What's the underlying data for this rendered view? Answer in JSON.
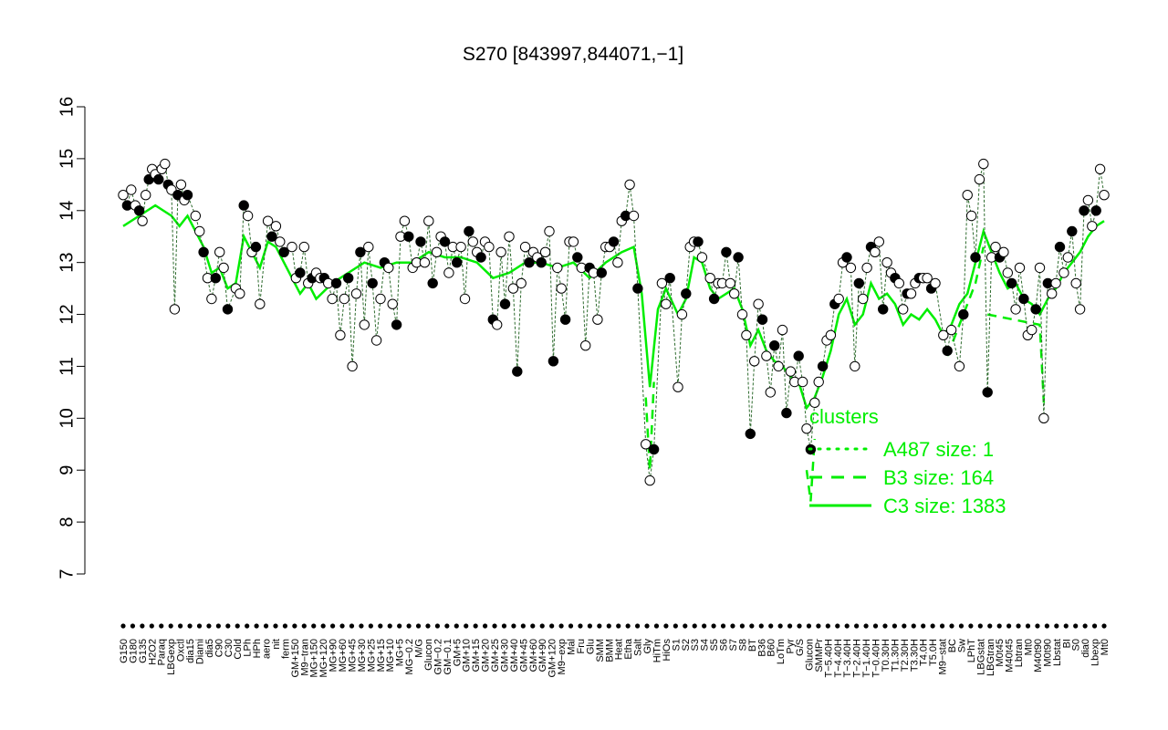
{
  "chart_data": {
    "type": "line",
    "title": "S270 [843997,844071,−1]",
    "xlabel": "",
    "ylabel": "",
    "ylim": [
      7,
      16
    ],
    "yticks": [
      7,
      8,
      9,
      10,
      11,
      12,
      13,
      14,
      15,
      16
    ],
    "colors": {
      "line": "#00ee00",
      "points_fill_dark": "#000000",
      "points_fill_light": "#ffffff"
    },
    "x_category_labels": [
      "G150",
      "G180",
      "G135",
      "H2O2",
      "Paraq",
      "LBGexp",
      "Oxctl",
      "dia15",
      "Diami",
      "dia5",
      "C90",
      "C30",
      "Cold",
      "LPh",
      "HPh",
      "aero",
      "nit",
      "ferm",
      "GM+150",
      "M9−tran",
      "MG+150",
      "MG+120",
      "MG+90",
      "MG+60",
      "MG+45",
      "MG+30",
      "MG+25",
      "MG+15",
      "MG+10",
      "MG+5",
      "MG−0.2",
      "M/G",
      "Glucon",
      "GM−0.2",
      "GM−0.1",
      "GM+5",
      "GM+10",
      "GM+15",
      "GM+20",
      "GM+25",
      "GM+30",
      "GM+40",
      "GM+45",
      "GM+60",
      "GM+90",
      "GM+120",
      "M9−exp",
      "Mal",
      "Fru",
      "Glu",
      "SMM",
      "BMM",
      "Heat",
      "Etha",
      "Salt",
      "Gly",
      "HiTm",
      "HiOs",
      "S1",
      "S2",
      "S3",
      "S4",
      "S5",
      "S6",
      "S7",
      "S8",
      "BT",
      "B36",
      "B60",
      "LoTm",
      "Pyr",
      "G/S",
      "Glucon",
      "SMMPr",
      "T−5.40H",
      "T−4.40H",
      "T−3.40H",
      "T−2.40H",
      "T−1.40H",
      "T−0.40H",
      "T0.30H",
      "T1.30H",
      "T2.30H",
      "T3.30H",
      "T4.0H",
      "T5.0H",
      "M9−stat",
      "BC",
      "Sw",
      "LPhT",
      "LBGstat",
      "LBGtran",
      "M0t45",
      "M40t45",
      "Lbtran",
      "Mt0",
      "M40t90",
      "M0t90",
      "Lbstat",
      "BI",
      "S0",
      "dia0",
      "Lbexp",
      "Mt0"
    ],
    "series": [
      {
        "name": "A487 size: 1"
      },
      {
        "name": "B3 size: 164"
      },
      {
        "name": "C3 size: 1383"
      }
    ],
    "legend": {
      "title": "clusters",
      "placement": "lower-right",
      "entries": [
        {
          "label": "A487 size: 1",
          "style": "dotted"
        },
        {
          "label": "B3 size: 164",
          "style": "dashed"
        },
        {
          "label": "C3 size: 1383",
          "style": "solid"
        }
      ]
    },
    "points": [
      [
        1,
        14.3
      ],
      [
        1.5,
        14.1
      ],
      [
        2,
        14.4
      ],
      [
        2.5,
        14.1
      ],
      [
        3,
        14.0
      ],
      [
        3.4,
        13.8
      ],
      [
        3.8,
        14.3
      ],
      [
        4.2,
        14.6
      ],
      [
        4.6,
        14.8
      ],
      [
        5,
        14.7
      ],
      [
        5.4,
        14.6
      ],
      [
        5.8,
        14.8
      ],
      [
        6.2,
        14.9
      ],
      [
        6.6,
        14.5
      ],
      [
        7,
        14.4
      ],
      [
        7.4,
        12.1
      ],
      [
        7.8,
        14.3
      ],
      [
        8.2,
        14.5
      ],
      [
        8.6,
        14.2
      ],
      [
        9,
        14.3
      ],
      [
        10,
        13.9
      ],
      [
        10.5,
        13.6
      ],
      [
        11,
        13.2
      ],
      [
        11.5,
        12.7
      ],
      [
        12,
        12.3
      ],
      [
        12.5,
        12.7
      ],
      [
        13,
        13.2
      ],
      [
        13.5,
        12.9
      ],
      [
        14,
        12.1
      ],
      [
        15,
        12.5
      ],
      [
        15.5,
        12.4
      ],
      [
        16,
        14.1
      ],
      [
        16.5,
        13.9
      ],
      [
        17,
        13.2
      ],
      [
        17.5,
        13.3
      ],
      [
        18,
        12.2
      ],
      [
        19,
        13.8
      ],
      [
        19.5,
        13.5
      ],
      [
        20,
        13.7
      ],
      [
        20.5,
        13.4
      ],
      [
        21,
        13.2
      ],
      [
        22,
        13.3
      ],
      [
        22.5,
        12.7
      ],
      [
        23,
        12.8
      ],
      [
        23.5,
        13.3
      ],
      [
        24,
        12.6
      ],
      [
        24.5,
        12.7
      ],
      [
        25,
        12.8
      ],
      [
        25.5,
        12.7
      ],
      [
        26,
        12.7
      ],
      [
        26.5,
        12.6
      ],
      [
        27,
        12.3
      ],
      [
        27.5,
        12.6
      ],
      [
        28,
        11.6
      ],
      [
        28.5,
        12.3
      ],
      [
        29,
        12.7
      ],
      [
        29.5,
        11.0
      ],
      [
        30,
        12.4
      ],
      [
        30.5,
        13.2
      ],
      [
        31,
        11.8
      ],
      [
        31.5,
        13.3
      ],
      [
        32,
        12.6
      ],
      [
        32.5,
        11.5
      ],
      [
        33,
        12.3
      ],
      [
        33.5,
        13.0
      ],
      [
        34,
        12.9
      ],
      [
        34.5,
        12.2
      ],
      [
        35,
        11.8
      ],
      [
        35.5,
        13.5
      ],
      [
        36,
        13.8
      ],
      [
        36.5,
        13.5
      ],
      [
        37,
        12.9
      ],
      [
        37.5,
        13.0
      ],
      [
        38,
        13.4
      ],
      [
        38.5,
        13.0
      ],
      [
        39,
        13.8
      ],
      [
        39.5,
        12.6
      ],
      [
        40,
        13.2
      ],
      [
        40.5,
        13.5
      ],
      [
        41,
        13.4
      ],
      [
        41.5,
        12.8
      ],
      [
        42,
        13.3
      ],
      [
        42.5,
        13.0
      ],
      [
        43,
        13.3
      ],
      [
        43.5,
        12.3
      ],
      [
        44,
        13.6
      ],
      [
        44.5,
        13.4
      ],
      [
        45,
        13.2
      ],
      [
        45.5,
        13.1
      ],
      [
        46,
        13.4
      ],
      [
        46.5,
        13.3
      ],
      [
        47,
        11.9
      ],
      [
        47.5,
        11.8
      ],
      [
        48,
        13.2
      ],
      [
        48.5,
        12.2
      ],
      [
        49,
        13.5
      ],
      [
        49.5,
        12.5
      ],
      [
        50,
        10.9
      ],
      [
        50.5,
        12.6
      ],
      [
        51,
        13.3
      ],
      [
        51.5,
        13.0
      ],
      [
        52,
        13.2
      ],
      [
        52.5,
        13.1
      ],
      [
        53,
        13.0
      ],
      [
        53.5,
        13.2
      ],
      [
        54,
        13.6
      ],
      [
        54.5,
        11.1
      ],
      [
        55,
        12.9
      ],
      [
        55.5,
        12.5
      ],
      [
        56,
        11.9
      ],
      [
        56.5,
        13.4
      ],
      [
        57,
        13.4
      ],
      [
        57.5,
        13.1
      ],
      [
        58,
        12.9
      ],
      [
        58.5,
        11.4
      ],
      [
        59,
        12.9
      ],
      [
        59.5,
        12.8
      ],
      [
        60,
        11.9
      ],
      [
        60.5,
        12.8
      ],
      [
        61,
        13.3
      ],
      [
        61.5,
        13.3
      ],
      [
        62,
        13.4
      ],
      [
        62.5,
        13.0
      ],
      [
        63,
        13.8
      ],
      [
        63.5,
        13.9
      ],
      [
        64,
        14.5
      ],
      [
        64.5,
        13.9
      ],
      [
        65,
        12.5
      ],
      [
        66,
        9.5
      ],
      [
        66.5,
        8.8
      ],
      [
        67,
        9.4
      ],
      [
        68,
        12.6
      ],
      [
        68.5,
        12.2
      ],
      [
        69,
        12.7
      ],
      [
        70,
        10.6
      ],
      [
        70.5,
        12.0
      ],
      [
        71,
        12.4
      ],
      [
        71.5,
        13.3
      ],
      [
        72,
        13.4
      ],
      [
        72.5,
        13.4
      ],
      [
        73,
        13.1
      ],
      [
        74,
        12.7
      ],
      [
        74.5,
        12.3
      ],
      [
        75,
        12.6
      ],
      [
        75.5,
        12.6
      ],
      [
        76,
        13.2
      ],
      [
        76.5,
        12.6
      ],
      [
        77,
        12.4
      ],
      [
        77.5,
        13.1
      ],
      [
        78,
        12.0
      ],
      [
        78.5,
        11.6
      ],
      [
        79,
        9.7
      ],
      [
        79.5,
        11.1
      ],
      [
        80,
        12.2
      ],
      [
        80.5,
        11.9
      ],
      [
        81,
        11.2
      ],
      [
        81.5,
        10.5
      ],
      [
        82,
        11.4
      ],
      [
        82.5,
        11.0
      ],
      [
        83,
        11.7
      ],
      [
        83.5,
        10.1
      ],
      [
        84,
        10.9
      ],
      [
        84.5,
        10.7
      ],
      [
        85,
        11.2
      ],
      [
        85.5,
        10.7
      ],
      [
        86,
        9.8
      ],
      [
        86.5,
        9.4
      ],
      [
        87,
        10.3
      ],
      [
        87.5,
        10.7
      ],
      [
        88,
        11.0
      ],
      [
        88.5,
        11.5
      ],
      [
        89,
        11.6
      ],
      [
        89.5,
        12.2
      ],
      [
        90,
        12.3
      ],
      [
        90.5,
        13.0
      ],
      [
        91,
        13.1
      ],
      [
        91.5,
        12.9
      ],
      [
        92,
        11.0
      ],
      [
        92.5,
        12.6
      ],
      [
        93,
        12.3
      ],
      [
        93.5,
        12.9
      ],
      [
        94,
        13.3
      ],
      [
        94.5,
        13.2
      ],
      [
        95,
        13.4
      ],
      [
        95.5,
        12.1
      ],
      [
        96,
        13.0
      ],
      [
        96.5,
        12.8
      ],
      [
        97,
        12.7
      ],
      [
        97.5,
        12.6
      ],
      [
        98,
        12.1
      ],
      [
        98.5,
        12.4
      ],
      [
        99,
        12.4
      ],
      [
        99.5,
        12.6
      ],
      [
        100,
        12.7
      ],
      [
        100.5,
        12.7
      ],
      [
        101,
        12.7
      ],
      [
        101.5,
        12.5
      ],
      [
        102,
        12.6
      ],
      [
        103,
        11.6
      ],
      [
        103.5,
        11.3
      ],
      [
        104,
        11.7
      ],
      [
        105,
        11.0
      ],
      [
        105.5,
        12.0
      ],
      [
        106,
        14.3
      ],
      [
        106.5,
        13.9
      ],
      [
        107,
        13.1
      ],
      [
        107.5,
        14.6
      ],
      [
        108,
        14.9
      ],
      [
        108.5,
        10.5
      ],
      [
        109,
        13.1
      ],
      [
        109.5,
        13.3
      ],
      [
        110,
        13.1
      ],
      [
        110.5,
        13.2
      ],
      [
        111,
        12.8
      ],
      [
        111.5,
        12.6
      ],
      [
        112,
        12.1
      ],
      [
        112.5,
        12.9
      ],
      [
        113,
        12.3
      ],
      [
        113.5,
        11.6
      ],
      [
        114,
        11.7
      ],
      [
        114.5,
        12.1
      ],
      [
        115,
        12.9
      ],
      [
        115.5,
        10.0
      ],
      [
        116,
        12.6
      ],
      [
        116.5,
        12.4
      ],
      [
        117,
        12.6
      ],
      [
        117.5,
        13.3
      ],
      [
        118,
        12.8
      ],
      [
        118.5,
        13.1
      ],
      [
        119,
        13.6
      ],
      [
        119.5,
        12.6
      ],
      [
        120,
        12.1
      ],
      [
        120.5,
        14.0
      ],
      [
        121,
        14.2
      ],
      [
        121.5,
        13.7
      ],
      [
        122,
        14.0
      ],
      [
        122.5,
        14.8
      ],
      [
        123,
        14.3
      ]
    ],
    "main_line": [
      [
        1,
        13.7
      ],
      [
        3,
        13.9
      ],
      [
        5,
        14.1
      ],
      [
        7,
        13.9
      ],
      [
        8,
        13.7
      ],
      [
        9,
        13.9
      ],
      [
        10,
        13.6
      ],
      [
        11,
        13.3
      ],
      [
        12,
        12.8
      ],
      [
        13,
        12.9
      ],
      [
        14,
        12.5
      ],
      [
        15,
        12.6
      ],
      [
        16,
        13.5
      ],
      [
        17,
        13.2
      ],
      [
        18,
        12.9
      ],
      [
        19,
        13.4
      ],
      [
        20,
        13.3
      ],
      [
        21,
        13.0
      ],
      [
        22,
        12.7
      ],
      [
        23,
        12.4
      ],
      [
        24,
        12.6
      ],
      [
        25,
        12.3
      ],
      [
        27,
        12.6
      ],
      [
        29,
        12.8
      ],
      [
        31,
        13.0
      ],
      [
        33,
        12.9
      ],
      [
        35,
        13.0
      ],
      [
        37,
        13.0
      ],
      [
        39,
        13.2
      ],
      [
        41,
        13.1
      ],
      [
        43,
        13.1
      ],
      [
        45,
        13.0
      ],
      [
        47,
        12.7
      ],
      [
        49,
        12.8
      ],
      [
        51,
        13.0
      ],
      [
        53,
        13.0
      ],
      [
        55,
        12.9
      ],
      [
        57,
        13.0
      ],
      [
        59,
        12.7
      ],
      [
        61,
        13.0
      ],
      [
        63,
        13.2
      ],
      [
        64.5,
        13.3
      ],
      [
        65.5,
        12.4
      ],
      [
        66.5,
        10.6
      ],
      [
        67.5,
        12.1
      ],
      [
        68.5,
        12.5
      ],
      [
        70,
        12.0
      ],
      [
        71,
        12.3
      ],
      [
        72,
        13.1
      ],
      [
        73,
        13.0
      ],
      [
        74,
        12.5
      ],
      [
        75,
        12.3
      ],
      [
        76,
        12.4
      ],
      [
        77,
        12.5
      ],
      [
        78,
        12.1
      ],
      [
        79,
        11.4
      ],
      [
        80,
        11.7
      ],
      [
        81,
        11.3
      ],
      [
        82,
        11.1
      ],
      [
        83,
        11.0
      ],
      [
        84,
        10.8
      ],
      [
        85,
        10.7
      ],
      [
        86,
        10.2
      ],
      [
        87,
        10.4
      ],
      [
        88,
        10.8
      ],
      [
        89,
        11.3
      ],
      [
        90,
        12.0
      ],
      [
        91,
        12.3
      ],
      [
        92,
        11.8
      ],
      [
        93,
        12.0
      ],
      [
        94,
        12.6
      ],
      [
        95,
        12.3
      ],
      [
        96,
        12.4
      ],
      [
        97,
        12.2
      ],
      [
        98,
        11.8
      ],
      [
        99,
        12.0
      ],
      [
        100,
        11.9
      ],
      [
        101,
        12.1
      ],
      [
        102,
        11.9
      ],
      [
        103,
        11.6
      ],
      [
        104,
        11.8
      ],
      [
        105,
        12.2
      ],
      [
        106,
        12.4
      ],
      [
        107,
        13.0
      ],
      [
        108,
        13.6
      ],
      [
        109,
        13.2
      ],
      [
        110,
        12.8
      ],
      [
        111,
        12.5
      ],
      [
        112,
        12.6
      ],
      [
        113,
        12.3
      ],
      [
        114,
        12.2
      ],
      [
        115,
        12.0
      ],
      [
        116,
        12.3
      ],
      [
        117,
        12.5
      ],
      [
        118,
        12.8
      ],
      [
        119,
        13.0
      ],
      [
        120,
        13.2
      ],
      [
        121,
        13.5
      ],
      [
        122,
        13.7
      ],
      [
        123,
        13.8
      ]
    ],
    "dashed_line": [
      [
        66,
        10.4
      ],
      [
        66.5,
        9.0
      ],
      [
        67,
        10.7
      ],
      [
        86,
        9.0
      ],
      [
        86.5,
        8.4
      ],
      [
        87,
        9.6
      ],
      [
        103.5,
        11.2
      ],
      [
        107,
        12.6
      ],
      [
        108,
        13.3
      ],
      [
        108.5,
        12.0
      ],
      [
        115,
        11.8
      ],
      [
        115.5,
        10.3
      ],
      [
        116,
        11.6
      ]
    ]
  }
}
